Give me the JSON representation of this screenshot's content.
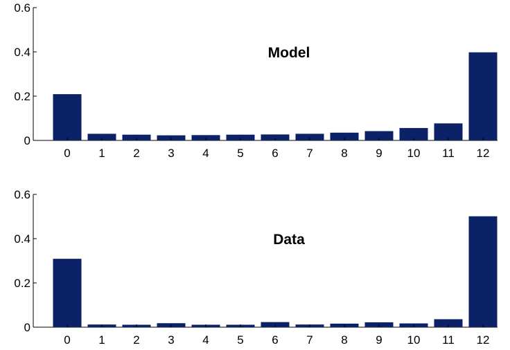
{
  "colors": {
    "bar": "#0c2266",
    "axis": "#000000"
  },
  "chart_data": [
    {
      "type": "bar",
      "title": "Model",
      "xlabel": "",
      "ylabel": "",
      "categories": [
        "0",
        "1",
        "2",
        "3",
        "4",
        "5",
        "6",
        "7",
        "8",
        "9",
        "10",
        "11",
        "12"
      ],
      "values": [
        0.209,
        0.03,
        0.026,
        0.023,
        0.024,
        0.026,
        0.027,
        0.03,
        0.035,
        0.042,
        0.056,
        0.077,
        0.398
      ],
      "ylim": [
        0,
        0.6
      ],
      "yticks": [
        "0",
        "0.2",
        "0.4",
        "0.6"
      ],
      "grid": false,
      "legend": "none"
    },
    {
      "type": "bar",
      "title": "Data",
      "xlabel": "",
      "ylabel": "",
      "categories": [
        "0",
        "1",
        "2",
        "3",
        "4",
        "5",
        "6",
        "7",
        "8",
        "9",
        "10",
        "11",
        "12"
      ],
      "values": [
        0.309,
        0.012,
        0.011,
        0.018,
        0.011,
        0.011,
        0.023,
        0.012,
        0.016,
        0.022,
        0.017,
        0.036,
        0.501
      ],
      "ylim": [
        0,
        0.6
      ],
      "yticks": [
        "0",
        "0.2",
        "0.4",
        "0.6"
      ],
      "grid": false,
      "legend": "none"
    }
  ]
}
